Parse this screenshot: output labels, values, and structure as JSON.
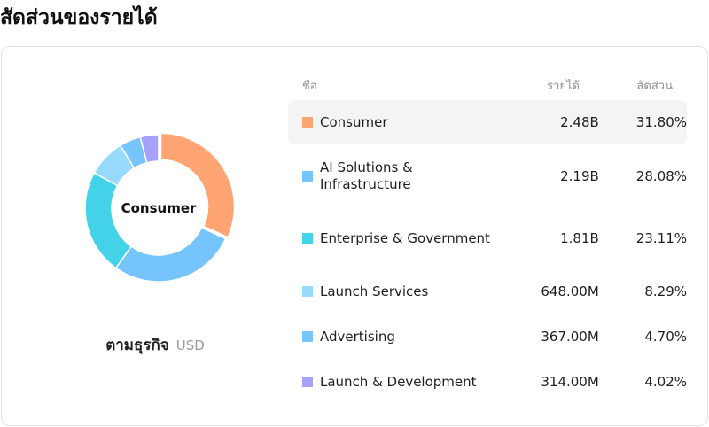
{
  "title": "สัดส่วนของรายได้",
  "caption": {
    "main": "ตามธุรกิจ",
    "unit": "USD"
  },
  "center_label": "Consumer",
  "table": {
    "col_name": "ชื่อ",
    "col_revenue": "รายได้",
    "col_share": "สัดส่วน"
  },
  "chart_data": {
    "type": "pie",
    "categories": [
      "Consumer",
      "AI Solutions & Infrastructure",
      "Enterprise & Government",
      "Launch Services",
      "Advertising",
      "Launch & Development"
    ],
    "values": [
      31.8,
      28.08,
      23.11,
      8.29,
      4.7,
      4.02
    ],
    "revenue_labels": [
      "2.48B",
      "2.19B",
      "1.81B",
      "648.00M",
      "367.00M",
      "314.00M"
    ],
    "share_labels": [
      "31.80%",
      "28.08%",
      "23.11%",
      "8.29%",
      "4.70%",
      "4.02%"
    ],
    "colors": [
      "#FFA574",
      "#75C4FC",
      "#43D2E8",
      "#98DAFD",
      "#78C5FC",
      "#A6A1F9"
    ],
    "highlighted": "Consumer"
  }
}
